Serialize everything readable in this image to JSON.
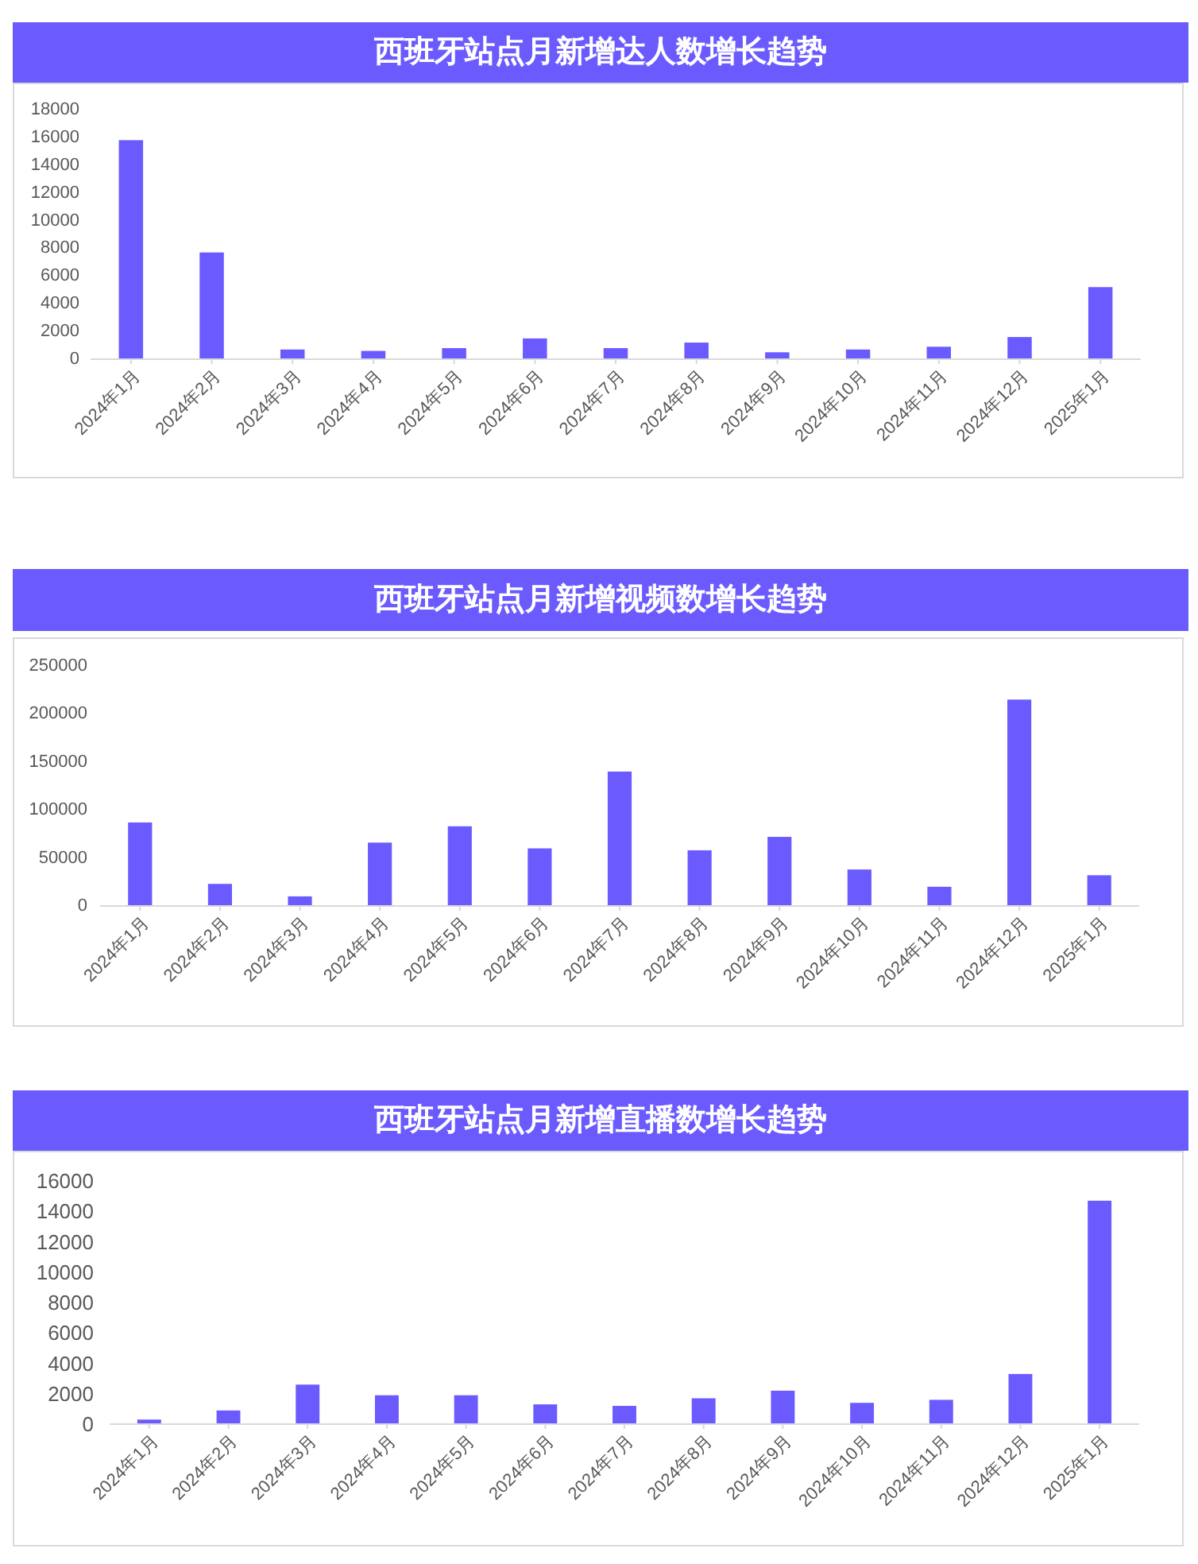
{
  "chart_data": [
    {
      "type": "bar",
      "title": "西班牙站点月新增达人数增长趋势",
      "categories": [
        "2024年1月",
        "2024年2月",
        "2024年3月",
        "2024年4月",
        "2024年5月",
        "2024年6月",
        "2024年7月",
        "2024年8月",
        "2024年9月",
        "2024年10月",
        "2024年11月",
        "2024年12月",
        "2025年1月"
      ],
      "values": [
        15800,
        7700,
        700,
        600,
        800,
        1500,
        800,
        1200,
        500,
        700,
        900,
        1600,
        5200
      ],
      "color": "#6b5bff",
      "ylim": [
        0,
        18000
      ],
      "yticks": [
        0,
        2000,
        4000,
        6000,
        8000,
        10000,
        12000,
        14000,
        16000,
        18000
      ]
    },
    {
      "type": "bar",
      "title": "西班牙站点月新增视频数增长趋势",
      "categories": [
        "2024年1月",
        "2024年2月",
        "2024年3月",
        "2024年4月",
        "2024年5月",
        "2024年6月",
        "2024年7月",
        "2024年8月",
        "2024年9月",
        "2024年10月",
        "2024年11月",
        "2024年12月",
        "2025年1月"
      ],
      "values": [
        87000,
        23000,
        10000,
        66000,
        83000,
        60000,
        140000,
        58000,
        72000,
        38000,
        20000,
        215000,
        32000
      ],
      "color": "#6b5bff",
      "ylim": [
        0,
        250000
      ],
      "yticks": [
        0,
        50000,
        100000,
        150000,
        200000,
        250000
      ]
    },
    {
      "type": "bar",
      "title": "西班牙站点月新增直播数增长趋势",
      "categories": [
        "2024年1月",
        "2024年2月",
        "2024年3月",
        "2024年4月",
        "2024年5月",
        "2024年6月",
        "2024年7月",
        "2024年8月",
        "2024年9月",
        "2024年10月",
        "2024年11月",
        "2024年12月",
        "2025年1月"
      ],
      "values": [
        300,
        900,
        2600,
        1900,
        1900,
        1300,
        1200,
        1700,
        2200,
        1400,
        1600,
        3300,
        14700
      ],
      "color": "#6b5bff",
      "ylim": [
        0,
        16000
      ],
      "yticks": [
        0,
        2000,
        4000,
        6000,
        8000,
        10000,
        12000,
        14000,
        16000
      ]
    }
  ]
}
